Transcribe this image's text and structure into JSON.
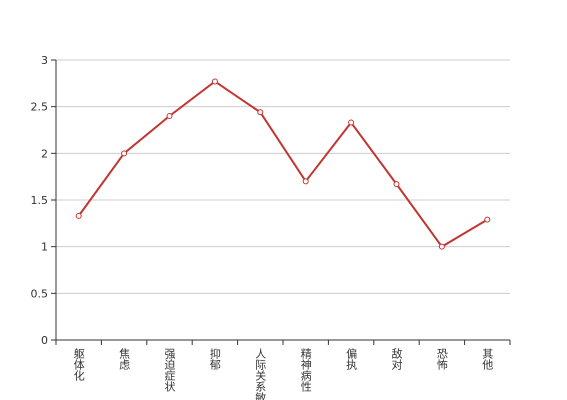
{
  "chart_data": {
    "type": "line",
    "categories": [
      "躯体化",
      "焦虑",
      "强迫症状",
      "抑郁",
      "人际关系敏感",
      "精神病性",
      "偏执",
      "敌对",
      "恐怖",
      "其他"
    ],
    "series": [
      {
        "color": "#c23531",
        "values": [
          1.33,
          2.0,
          2.4,
          2.77,
          2.44,
          1.7,
          2.33,
          1.67,
          1.0,
          1.29
        ]
      }
    ],
    "ylim": [
      0,
      3
    ],
    "yticks": [
      0,
      0.5,
      1,
      1.5,
      2,
      2.5,
      3
    ],
    "grid": true
  }
}
